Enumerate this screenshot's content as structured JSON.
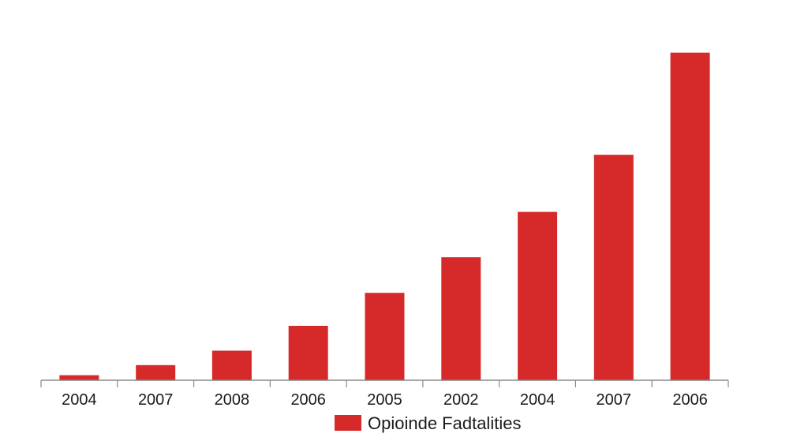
{
  "chart_data": {
    "type": "bar",
    "categories": [
      "2004",
      "2007",
      "2008",
      "2006",
      "2005",
      "2002",
      "2004",
      "2007",
      "2006"
    ],
    "series": [
      {
        "name": "Opioinde Fadtalities",
        "values": [
          1.5,
          4.5,
          8.8,
          16.2,
          26.0,
          36.6,
          50.1,
          67.1,
          97.5
        ]
      }
    ],
    "ylim": [
      0,
      100
    ],
    "grid": false,
    "legend_position": "bottom-center",
    "colors": {
      "bar": "#d62a2a",
      "axis": "#888888"
    }
  }
}
